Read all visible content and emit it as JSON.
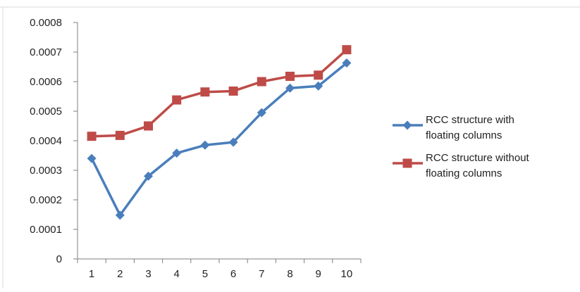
{
  "chart_data": {
    "type": "line",
    "categories": [
      "1",
      "2",
      "3",
      "4",
      "5",
      "6",
      "7",
      "8",
      "9",
      "10"
    ],
    "y_ticks": [
      "0",
      "0.0001",
      "0.0002",
      "0.0003",
      "0.0004",
      "0.0005",
      "0.0006",
      "0.0007",
      "0.0008"
    ],
    "ylim": [
      0,
      0.0008
    ],
    "grid": false,
    "legend_position": "right",
    "series": [
      {
        "name": "RCC structure with floating columns",
        "legend_lines": [
          "RCC structure with",
          "floating columns"
        ],
        "marker": "diamond",
        "color": "#4a7ebb",
        "values": [
          0.00034,
          0.000148,
          0.00028,
          0.000358,
          0.000385,
          0.000395,
          0.000495,
          0.000578,
          0.000585,
          0.000663
        ]
      },
      {
        "name": "RCC structure without floating columns",
        "legend_lines": [
          "RCC structure without",
          "floating columns"
        ],
        "marker": "square",
        "color": "#be4b48",
        "values": [
          0.000415,
          0.000418,
          0.00045,
          0.000538,
          0.000565,
          0.000568,
          0.0006,
          0.000618,
          0.000622,
          0.000708
        ]
      }
    ]
  }
}
